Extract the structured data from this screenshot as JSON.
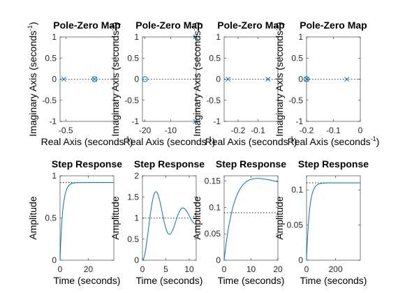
{
  "colors": {
    "series": "#0072bd",
    "axes": "#262626",
    "reference": "#000000"
  },
  "chart_data": [
    {
      "type": "scatter",
      "title": "Pole-Zero Map",
      "xlabel": "Real Axis (seconds",
      "ylabel": "Imaginary Axis (seconds",
      "label_exponent": "-1",
      "xlim": [
        -0.56,
        0
      ],
      "ylim": [
        -1,
        1
      ],
      "xticks": [
        -0.5
      ],
      "xtick_labels": [
        "-0.5"
      ],
      "yticks": [
        -1,
        -0.5,
        0,
        0.5,
        1
      ],
      "ytick_labels": [
        "-1",
        "-0.5",
        "0",
        "0.5",
        "1"
      ],
      "poles": [
        [
          -0.52,
          0
        ],
        [
          -0.2,
          0
        ]
      ],
      "zeros": [
        [
          -0.2,
          0
        ]
      ],
      "grid": false
    },
    {
      "type": "scatter",
      "title": "Pole-Zero Map",
      "xlabel": "Real Axis (seconds",
      "ylabel": "Imaginary Axis (seconds",
      "label_exponent": "-1",
      "xlim": [
        -21,
        0
      ],
      "ylim": [
        -1,
        1
      ],
      "xticks": [
        -20,
        -10
      ],
      "xtick_labels": [
        "-20",
        "-10"
      ],
      "yticks": [
        -1,
        -0.5,
        0,
        0.5,
        1
      ],
      "ytick_labels": [
        "-1",
        "-0.5",
        "0",
        "0.5",
        "1"
      ],
      "poles": [
        [
          -0.3,
          1
        ],
        [
          -0.3,
          -1
        ]
      ],
      "zeros": [
        [
          -20,
          0
        ]
      ],
      "grid": false
    },
    {
      "type": "scatter",
      "title": "Pole-Zero Map",
      "xlabel": "Real Axis (seconds",
      "ylabel": "Imaginary Axis (seconds",
      "label_exponent": "-1",
      "xlim": [
        -0.27,
        0
      ],
      "ylim": [
        -1,
        1
      ],
      "xticks": [
        -0.2,
        -0.1
      ],
      "xtick_labels": [
        "-0.2",
        "-0.1"
      ],
      "yticks": [
        -1,
        -0.5,
        0,
        0.5,
        1
      ],
      "ytick_labels": [
        "-1",
        "-0.5",
        "0",
        "0.5",
        "1"
      ],
      "poles": [
        [
          -0.25,
          0
        ],
        [
          -0.05,
          0
        ]
      ],
      "zeros": [],
      "grid": false
    },
    {
      "type": "scatter",
      "title": "Pole-Zero Map",
      "xlabel": "Real Axis (seconds",
      "ylabel": "Imaginary Axis (seconds",
      "label_exponent": "-1",
      "xlim": [
        -0.2,
        0
      ],
      "ylim": [
        -1,
        1
      ],
      "xticks": [
        -0.2,
        -0.1,
        0
      ],
      "xtick_labels": [
        "-0.2",
        "-0.1",
        "0"
      ],
      "yticks": [
        -1,
        -0.5,
        0,
        0.5,
        1
      ],
      "ytick_labels": [
        "-1",
        "-0.5",
        "0",
        "0.5",
        "1"
      ],
      "poles": [
        [
          -0.2,
          0
        ],
        [
          -0.05,
          0
        ]
      ],
      "zeros": [
        [
          -0.2,
          0
        ]
      ],
      "grid": false
    },
    {
      "type": "line",
      "title": "Step Response",
      "xlabel": "Time (seconds)",
      "ylabel": "Amplitude",
      "xlim": [
        0,
        38
      ],
      "ylim": [
        0,
        1
      ],
      "xticks": [
        0,
        20
      ],
      "xtick_labels": [
        "0",
        "20"
      ],
      "yticks": [
        0,
        0.5,
        1
      ],
      "ytick_labels": [
        "0",
        "0.5",
        "1"
      ],
      "final_value": 0.92,
      "response": {
        "kind": "first-order",
        "gain": 0.92,
        "tau": 1.9
      },
      "grid": false
    },
    {
      "type": "line",
      "title": "Step Response",
      "xlabel": "Time (seconds)",
      "ylabel": "Amplitude",
      "xlim": [
        0,
        11.5
      ],
      "ylim": [
        0,
        2
      ],
      "xticks": [
        0,
        5,
        10
      ],
      "xtick_labels": [
        "0",
        "5",
        "10"
      ],
      "yticks": [
        0,
        0.5,
        1,
        1.5,
        2
      ],
      "ytick_labels": [
        "0",
        "0.5",
        "1",
        "1.5",
        "2"
      ],
      "final_value": 1,
      "response": {
        "kind": "second-order",
        "gain": 1,
        "wn": 1.1,
        "zeta": 0.15
      },
      "grid": false
    },
    {
      "type": "line",
      "title": "Step Response",
      "xlabel": "Time (seconds)",
      "ylabel": "Amplitude",
      "xlim": [
        0,
        20
      ],
      "ylim": [
        0,
        0.16
      ],
      "xticks": [
        0,
        10,
        20
      ],
      "xtick_labels": [
        "0",
        "10",
        "20"
      ],
      "yticks": [
        0,
        0.05,
        0.1,
        0.15
      ],
      "ytick_labels": [
        "0",
        "0.05",
        "0.1",
        "0.15"
      ],
      "final_value": 0.09,
      "response": {
        "kind": "two-pole-zero",
        "poles": [
          -0.25,
          -0.05
        ],
        "zero": -0.0321,
        "peak": 0.155
      },
      "grid": false
    },
    {
      "type": "line",
      "title": "Step Response",
      "xlabel": "Time (seconds)",
      "ylabel": "Amplitude",
      "xlim": [
        0,
        370
      ],
      "ylim": [
        0,
        0.12
      ],
      "xticks": [
        0,
        200
      ],
      "xtick_labels": [
        "0",
        "200"
      ],
      "yticks": [
        0,
        0.05,
        0.1
      ],
      "ytick_labels": [
        "0",
        "0.05",
        "0.1"
      ],
      "final_value": 0.11,
      "response": {
        "kind": "first-order",
        "gain": 0.11,
        "tau": 20
      },
      "grid": false
    }
  ]
}
